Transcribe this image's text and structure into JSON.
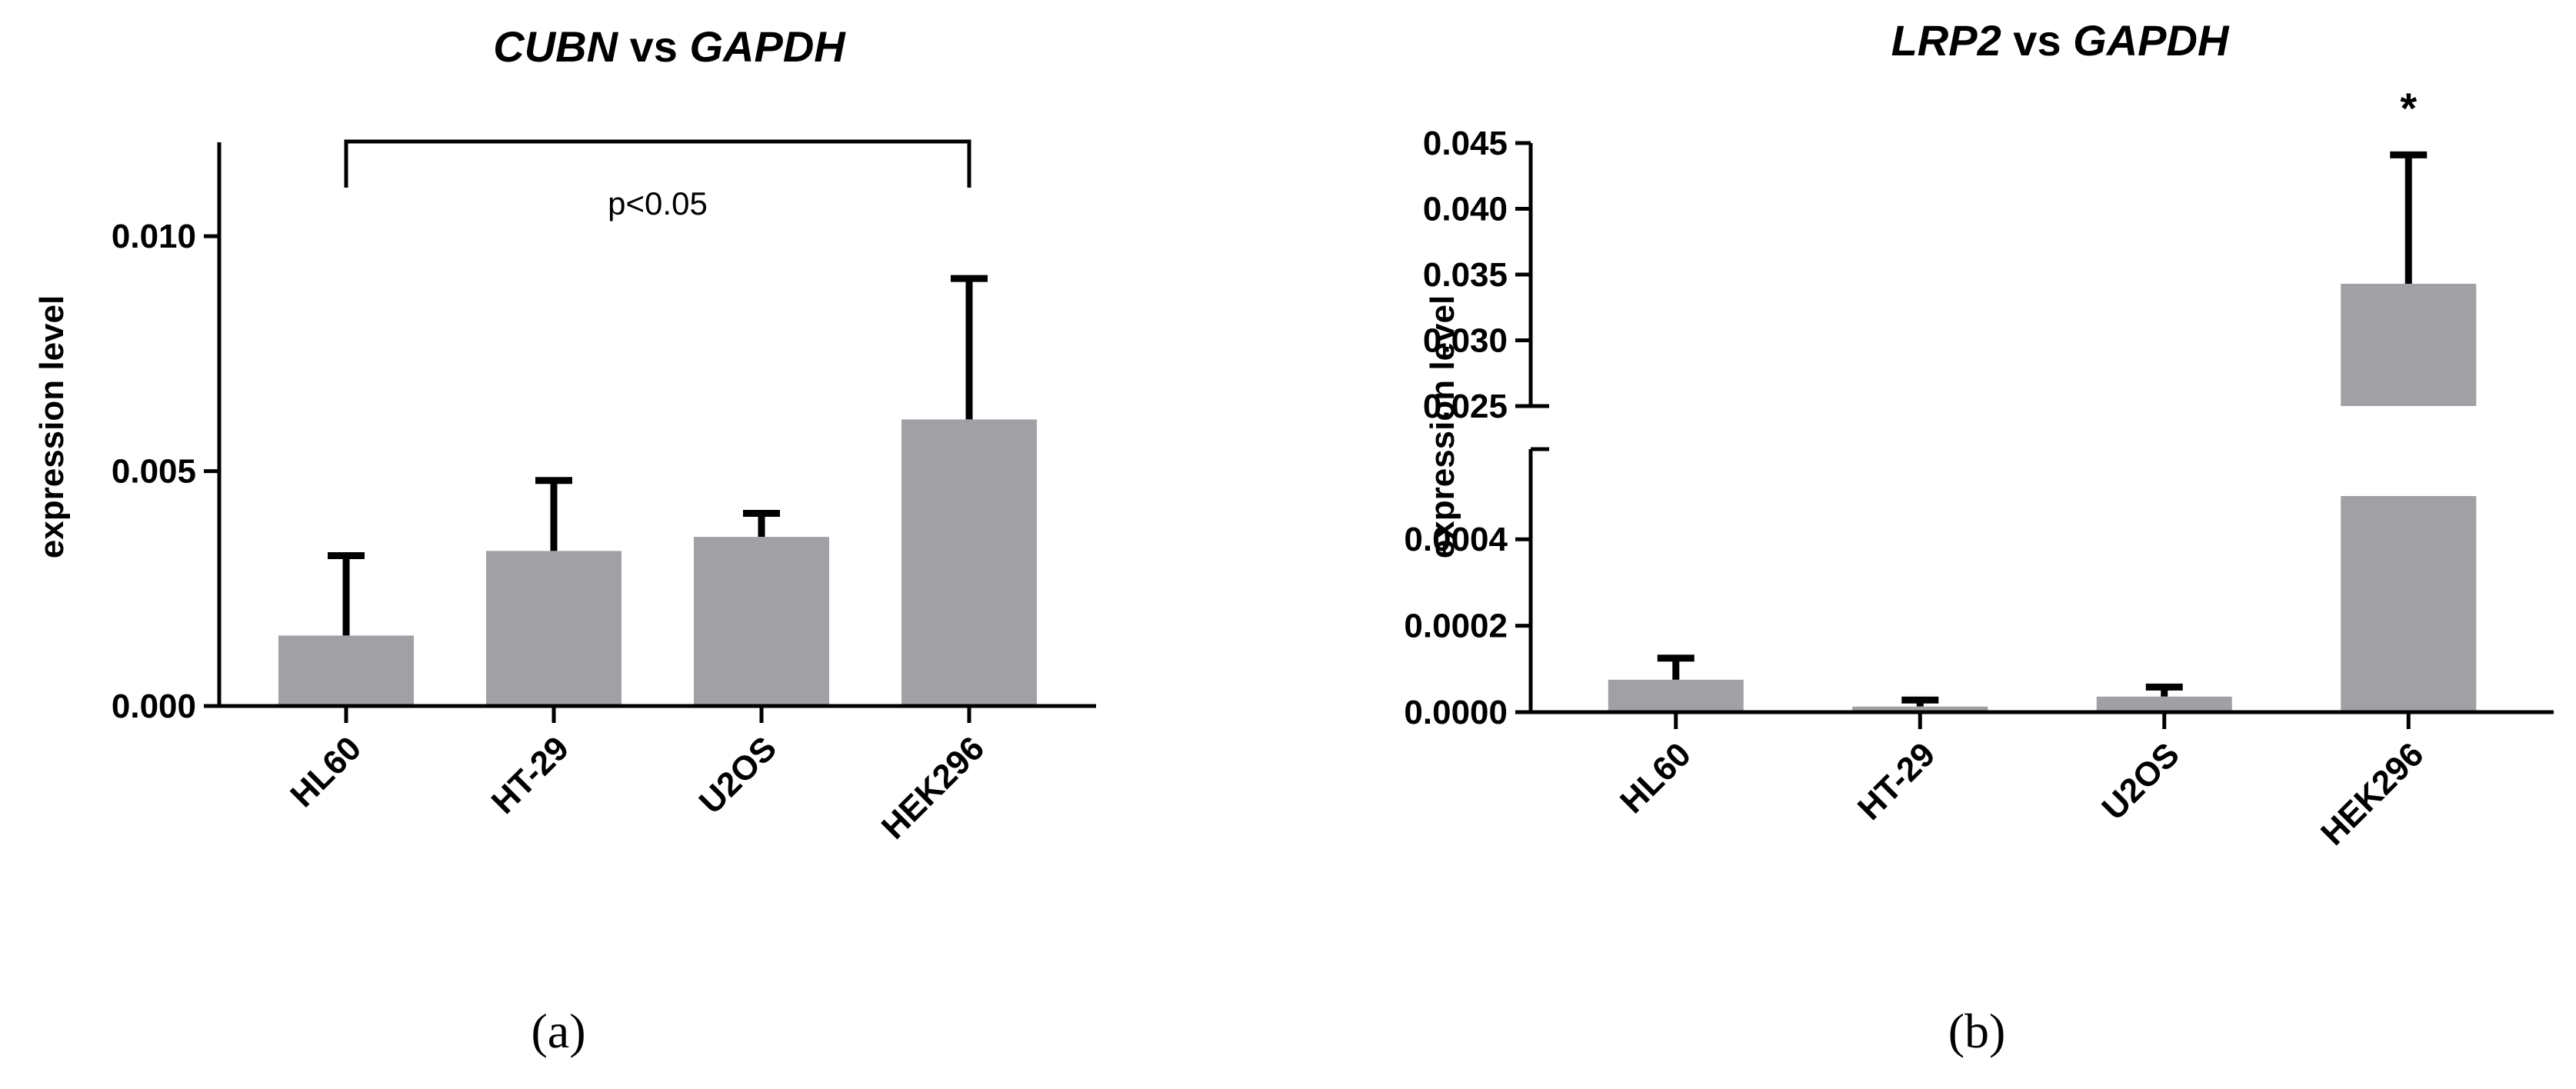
{
  "chart_data": [
    {
      "panel": "(a)",
      "type": "bar",
      "title": "CUBN vs GAPDH",
      "title_parts": [
        {
          "text": "CUBN",
          "italic": true
        },
        {
          "text": " vs ",
          "italic": false
        },
        {
          "text": "GAPDH",
          "italic": true
        }
      ],
      "xlabel": "",
      "ylabel": "expression level",
      "categories": [
        "HL60",
        "HT-29",
        "U2OS",
        "HEK296"
      ],
      "values": [
        0.0015,
        0.0033,
        0.0036,
        0.0061
      ],
      "error_upper": [
        0.0032,
        0.0048,
        0.0041,
        0.0091
      ],
      "ylim": [
        0,
        0.012
      ],
      "yticks": [
        0,
        0.005,
        0.01
      ],
      "ytick_labels": [
        "0.000",
        "0.005",
        "0.010"
      ],
      "bar_color": "#a1a1a5",
      "annotations": [
        {
          "type": "bracket",
          "from": "HL60",
          "to": "HEK296",
          "text": "p<0.05"
        }
      ],
      "grid": false,
      "legend": "none"
    },
    {
      "panel": "(b)",
      "type": "bar",
      "title": "LRP2 vs GAPDH",
      "title_parts": [
        {
          "text": "LRP2",
          "italic": true
        },
        {
          "text": " vs ",
          "italic": false
        },
        {
          "text": "GAPDH",
          "italic": true
        }
      ],
      "xlabel": "",
      "ylabel": "expression level",
      "categories": [
        "HL60",
        "HT-29",
        "U2OS",
        "HEK296"
      ],
      "values": [
        7.5e-05,
        1.3e-05,
        3.6e-05,
        0.0343
      ],
      "error_upper": [
        0.000125,
        2.8e-05,
        5.8e-05,
        0.0441
      ],
      "y_axis_break": true,
      "ylim_lower": [
        0,
        0.0005
      ],
      "ylim_upper": [
        0.025,
        0.045
      ],
      "yticks_lower": [
        0,
        0.0002,
        0.0004
      ],
      "ytick_labels_lower": [
        "0.0000",
        "0.0002",
        "0.0004"
      ],
      "yticks_upper": [
        0.025,
        0.03,
        0.035,
        0.04,
        0.045
      ],
      "ytick_labels_upper": [
        "0.025",
        "0.030",
        "0.035",
        "0.040",
        "0.045"
      ],
      "bar_color": "#a1a1a5",
      "annotations": [
        {
          "type": "marker",
          "category": "HEK296",
          "text": "*"
        }
      ],
      "grid": false,
      "legend": "none"
    }
  ]
}
